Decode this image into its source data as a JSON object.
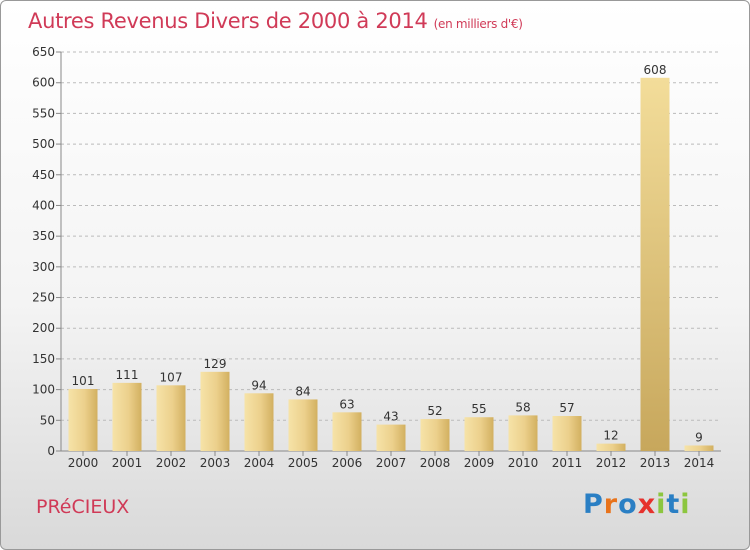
{
  "title": "Autres Revenus Divers de 2000 à 2014",
  "subtitle": "(en milliers d'€)",
  "commune": "PRéCIEUX",
  "logo": {
    "text": "Proxiti",
    "letters": [
      "P",
      "r",
      "o",
      "x",
      "i",
      "t",
      "i"
    ],
    "colors": [
      "#2a7fc4",
      "#e8731b",
      "#2a7fc4",
      "#e6322d",
      "#8cc63f",
      "#2a7fc4",
      "#8cc63f"
    ]
  },
  "chart_data": {
    "type": "bar",
    "categories": [
      "2000",
      "2001",
      "2002",
      "2003",
      "2004",
      "2005",
      "2006",
      "2007",
      "2008",
      "2009",
      "2010",
      "2011",
      "2012",
      "2013",
      "2014"
    ],
    "values": [
      101,
      111,
      107,
      129,
      94,
      84,
      63,
      43,
      52,
      55,
      58,
      57,
      12,
      608,
      9
    ],
    "title": "Autres Revenus Divers de 2000 à 2014",
    "xlabel": "",
    "ylabel": "",
    "ylim": [
      0,
      650
    ],
    "yticks": [
      0,
      50,
      100,
      150,
      200,
      250,
      300,
      350,
      400,
      450,
      500,
      550,
      600,
      650
    ],
    "grid": "horizontal dashed",
    "legend": "none",
    "bar_color": "#e8cc84"
  }
}
